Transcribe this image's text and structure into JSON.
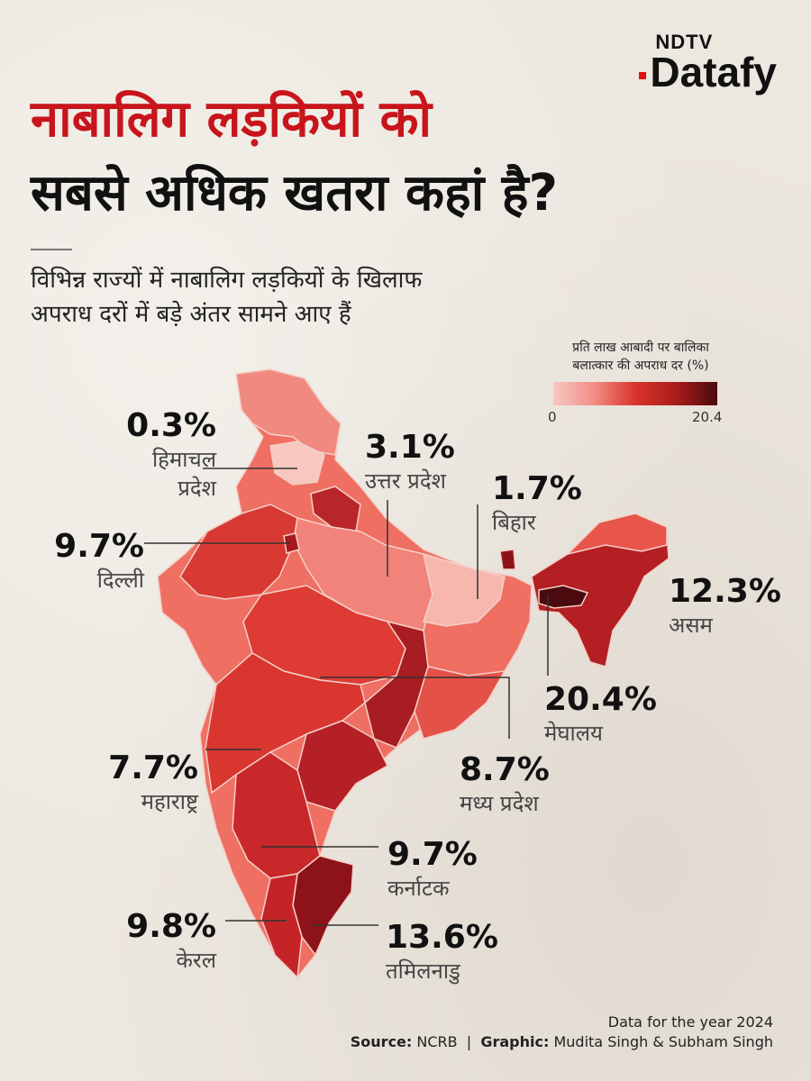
{
  "brand": {
    "top": "NDTV",
    "bottom": "Datafy"
  },
  "title": {
    "line1": "नाबालिग लड़कियों को",
    "line2": "सबसे अधिक खतरा कहां है?"
  },
  "subtitle": {
    "line1": "विभिन्न राज्यों में नाबालिग लड़कियों के खिलाफ",
    "line2": "अपराध दरों में बड़े अंतर सामने आए हैं"
  },
  "legend": {
    "title_line1": "प्रति लाख आबादी पर बालिका",
    "title_line2": "बलात्कार की अपराध दर (%)",
    "min": "0",
    "max": "20.4",
    "colors": [
      "#f7c7c3",
      "#f28e86",
      "#d9342c",
      "#a91c1c",
      "#4a0a0e"
    ]
  },
  "labels": [
    {
      "value": "0.3%",
      "name_line1": "हिमाचल",
      "name_line2": "प्रदेश"
    },
    {
      "value": "3.1%",
      "name_line1": "उत्तर प्रदेश"
    },
    {
      "value": "1.7%",
      "name_line1": "बिहार"
    },
    {
      "value": "9.7%",
      "name_line1": "दिल्ली"
    },
    {
      "value": "12.3%",
      "name_line1": "असम"
    },
    {
      "value": "20.4%",
      "name_line1": "मेघालय"
    },
    {
      "value": "7.7%",
      "name_line1": "महाराष्ट्र"
    },
    {
      "value": "8.7%",
      "name_line1": "मध्य प्रदेश"
    },
    {
      "value": "9.7%",
      "name_line1": "कर्नाटक"
    },
    {
      "value": "9.8%",
      "name_line1": "केरल"
    },
    {
      "value": "13.6%",
      "name_line1": "तमिलनाडु"
    }
  ],
  "footer": {
    "line1": "Data for the year 2024",
    "source_label": "Source:",
    "source": "NCRB",
    "separator": "|",
    "graphic_label": "Graphic:",
    "graphic": "Mudita Singh & Subham Singh"
  }
}
